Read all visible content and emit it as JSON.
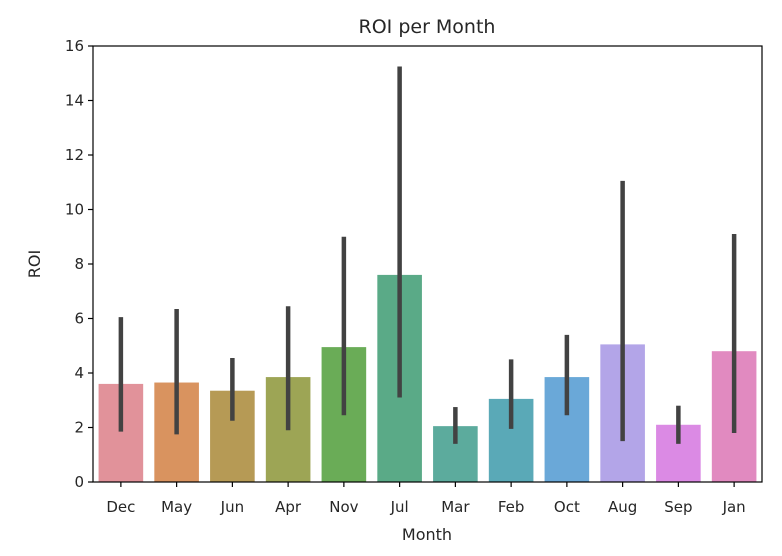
{
  "chart_data": {
    "type": "bar",
    "title": "ROI per Month",
    "xlabel": "Month",
    "ylabel": "ROI",
    "ylim": [
      0,
      16
    ],
    "yticks": [
      0,
      2,
      4,
      6,
      8,
      10,
      12,
      14,
      16
    ],
    "grid": false,
    "categories": [
      "Dec",
      "May",
      "Jun",
      "Apr",
      "Nov",
      "Jul",
      "Mar",
      "Feb",
      "Oct",
      "Aug",
      "Sep",
      "Jan"
    ],
    "values": [
      3.6,
      3.65,
      3.35,
      3.85,
      4.95,
      7.6,
      2.05,
      3.05,
      3.85,
      5.05,
      2.1,
      4.8
    ],
    "error_low": [
      1.85,
      1.75,
      2.25,
      1.9,
      2.45,
      3.1,
      1.4,
      1.95,
      2.45,
      1.5,
      1.4,
      1.8
    ],
    "error_high": [
      6.05,
      6.35,
      4.55,
      6.45,
      9.0,
      15.25,
      2.75,
      4.5,
      5.4,
      11.05,
      2.8,
      9.1
    ],
    "colors": [
      "#e1929a",
      "#d9935f",
      "#b69a55",
      "#9da555",
      "#6aac57",
      "#5aaa87",
      "#5cab9d",
      "#5aa9b7",
      "#6aa8d8",
      "#b3a5e8",
      "#db8ae4",
      "#e18ac0"
    ],
    "error_color": "#424242"
  }
}
